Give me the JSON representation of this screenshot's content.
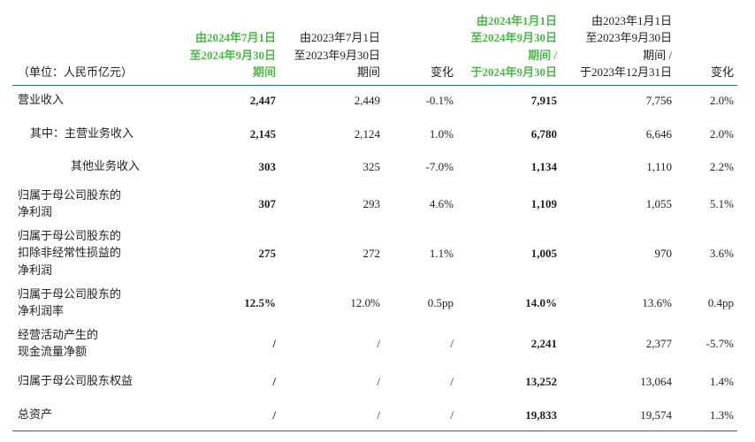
{
  "table": {
    "unit": "（单位：人民币亿元）",
    "headers": [
      [
        "由2024年7月1日",
        "至2024年9月30日",
        "期间"
      ],
      [
        "由2023年7月1日",
        "至2023年9月30日",
        "期间"
      ],
      [
        "变化"
      ],
      [
        "由2024年1月1日",
        "至2024年9月30日",
        "期间 /",
        "于2024年9月30日"
      ],
      [
        "由2023年1月1日",
        "至2023年9月30日",
        "期间 /",
        "于2023年12月31日"
      ],
      [
        "变化"
      ]
    ],
    "rows": [
      {
        "label": [
          "营业收入"
        ],
        "cells": [
          "2,447",
          "2,449",
          "-0.1%",
          "7,915",
          "7,756",
          "2.0%"
        ]
      },
      {
        "label": [
          "其中：主营业务收入"
        ],
        "cells": [
          "2,145",
          "2,124",
          "1.0%",
          "6,780",
          "6,646",
          "2.0%"
        ]
      },
      {
        "label": [
          "其他业务收入"
        ],
        "cells": [
          "303",
          "325",
          "-7.0%",
          "1,134",
          "1,110",
          "2.2%"
        ]
      },
      {
        "label": [
          "归属于母公司股东的",
          "净利润"
        ],
        "cells": [
          "307",
          "293",
          "4.6%",
          "1,109",
          "1,055",
          "5.1%"
        ]
      },
      {
        "label": [
          "归属于母公司股东的",
          "扣除非经常性损益的",
          "净利润"
        ],
        "cells": [
          "275",
          "272",
          "1.1%",
          "1,005",
          "970",
          "3.6%"
        ]
      },
      {
        "label": [
          "归属于母公司股东的",
          "净利润率"
        ],
        "cells": [
          "12.5%",
          "12.0%",
          "0.5pp",
          "14.0%",
          "13.6%",
          "0.4pp"
        ]
      },
      {
        "label": [
          "经营活动产生的",
          "现金流量净额"
        ],
        "cells": [
          "/",
          "/",
          "/",
          "2,241",
          "2,377",
          "-5.7%"
        ]
      },
      {
        "label": [
          "归属于母公司股东权益"
        ],
        "cells": [
          "/",
          "/",
          "/",
          "13,252",
          "13,064",
          "1.4%"
        ]
      },
      {
        "label": [
          "总资产"
        ],
        "cells": [
          "/",
          "/",
          "/",
          "19,833",
          "19,574",
          "1.3%"
        ]
      }
    ]
  }
}
